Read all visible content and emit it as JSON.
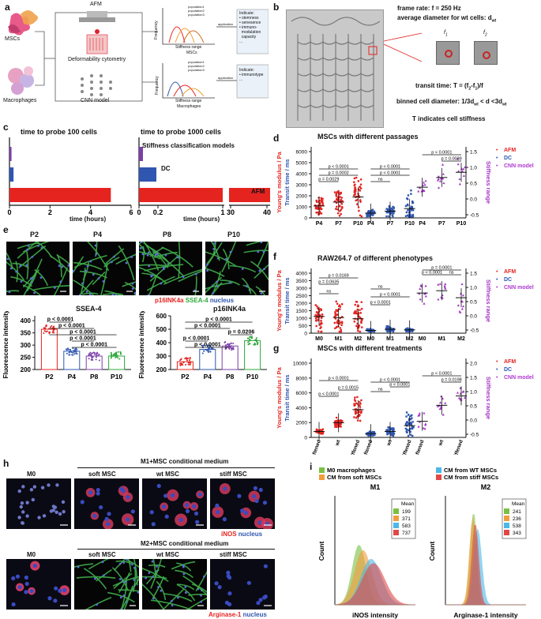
{
  "panels": {
    "a": {
      "label": "a",
      "left_nodes": [
        "MSCs",
        "Macrophages"
      ],
      "center_nodes": [
        "AFM",
        "Deformability cytometry",
        "CNN model"
      ],
      "hist_top": {
        "y_label": "Frequency",
        "x_label": "Stiffness range",
        "sub_label": "MSCs",
        "legend": [
          "population1",
          "population2",
          "population3"
        ]
      },
      "hist_bottom": {
        "y_label": "Frequency",
        "x_label": "Stiffness range",
        "sub_label": "Macrophages",
        "legend": [
          "population1",
          "population2",
          "population3"
        ]
      },
      "application_label": "application",
      "indicate_top": {
        "title": "Indicate:",
        "items": [
          "stemness",
          "senesence",
          "immuno-",
          "modulation",
          "capacity",
          "..."
        ]
      },
      "indicate_bottom": {
        "title": "Indicate:",
        "items": [
          "immunotype",
          "..."
        ]
      }
    },
    "b": {
      "label": "b",
      "frame_rate": "frame rate: f = 250 Hz",
      "avg_diameter": "average diameter for wt cells: d",
      "avg_diameter_sub": "wt",
      "f1": "f",
      "f1_sub": "1",
      "f2": "f",
      "f2_sub": "2",
      "transit": "transit time: T = (f",
      "transit_mid": "-f",
      "transit_end": ")/f",
      "binned": "binned cell diameter: 1/3d",
      "binned_mid": " < d <3d",
      "indicates": "T indicates cell stiffness"
    },
    "c": {
      "label": "c",
      "title_left": "time to probe 100 cells",
      "title_right": "time to probe 1000 cells",
      "rows": [
        "Stiffness classification models",
        "DC",
        "AFM"
      ],
      "x_label": "time (hours)",
      "ticks_left": [
        "0",
        "2",
        "4",
        "6"
      ],
      "ticks_right": [
        "0",
        "0.2",
        "1",
        "30",
        "40"
      ],
      "colors": {
        "cnn": "#7b3fa8",
        "dc": "#2f56b0",
        "afm": "#e52420"
      }
    },
    "d": {
      "label": "d",
      "title": "MSCs with different passages",
      "y_left": "Young's modulus / Pa",
      "y_left2": "Transit time / ms",
      "y_right": "Stiffness range",
      "groups": [
        "P4",
        "P7",
        "P10"
      ],
      "legend": [
        "AFM",
        "DC",
        "CNN model"
      ],
      "p": [
        "p = 0.0029",
        "p = 0.0002",
        "p < 0.0001",
        "ns",
        "p < 0.0001",
        "p < 0.0001",
        "p < 0.0001",
        "p = 0.0039"
      ],
      "y_ticks": [
        "0",
        "1000",
        "2000",
        "3000",
        "4000",
        "5000",
        "6000"
      ],
      "y2_ticks": [
        "-0.5",
        "0.0",
        "0.5",
        "1.0",
        "1.5"
      ]
    },
    "e": {
      "label": "e",
      "img_labels": [
        "P2",
        "P4",
        "P8",
        "P10"
      ],
      "stain_legend": [
        "p16INK4a",
        "SSEA-4",
        "nucleus"
      ],
      "ssea4": {
        "title": "SSEA-4",
        "y_label": "Fluorescence intensity",
        "groups": [
          "P2",
          "P4",
          "P8",
          "P10"
        ],
        "values": [
          365,
          275,
          255,
          255
        ],
        "ylim": [
          200,
          420
        ],
        "y_ticks": [
          "200",
          "250",
          "300",
          "350",
          "400"
        ],
        "p": [
          "p < 0.0001",
          "p < 0.0001",
          "p < 0.0001",
          "p < 0.0001",
          "p < 0.0001"
        ],
        "color": "#e52420"
      },
      "p16": {
        "title": "p16INK4a",
        "y_label": "Fluorescence intensity",
        "groups": [
          "P2",
          "P4",
          "P8",
          "P10"
        ],
        "values": [
          258,
          350,
          375,
          415
        ],
        "ylim": [
          200,
          600
        ],
        "y_ticks": [
          "200",
          "300",
          "400",
          "500",
          "600"
        ],
        "p": [
          "p < 0.0001",
          "p < 0.0001",
          "p = 0.0206",
          "p < 0.0001",
          "p < 0.0001"
        ],
        "colors": [
          "#e52420",
          "#2f56b0",
          "#7b3fa8",
          "#2ea83a"
        ]
      }
    },
    "f": {
      "label": "f",
      "title": "RAW264.7 of different phenotypes",
      "y_left": "Young's modulus / Pa",
      "y_left2": "Transit time / ms",
      "y_right": "Stiffness range",
      "groups": [
        "M0",
        "M1",
        "M2"
      ],
      "legend": [
        "AFM",
        "DC",
        "CNN model"
      ],
      "p": [
        "p = 0.0635",
        "p = 0.0169",
        "ns",
        "ns",
        "p < 0.0001",
        "p < 0.0001",
        "p < 0.0001",
        "ns",
        "p = 0.0001"
      ],
      "y_ticks": [
        "0",
        "500",
        "1000",
        "1500",
        "2000",
        "2500",
        "3000",
        "3500",
        "4000"
      ],
      "y2_ticks": [
        "-0.5",
        "0.0",
        "0.5",
        "1.0",
        "1.5"
      ]
    },
    "g": {
      "label": "g",
      "title": "MSCs with different treatments",
      "y_left": "Young's modulus / Pa",
      "y_left2": "Transit time / ms",
      "y_right": "Stiffness range",
      "groups": [
        "softened",
        "wt",
        "stiffened"
      ],
      "legend": [
        "AFM",
        "DC",
        "CNN model"
      ],
      "p": [
        "p < 0.0001",
        "p = 0.0015",
        "p < 0.0001",
        "ns",
        "p < 0.0001",
        "p < 0.0001",
        "p < 0.0001",
        "p = 0.0198"
      ],
      "y_ticks": [
        "0",
        "2000",
        "4000",
        "6000",
        "8000",
        "10000"
      ],
      "y2_ticks": [
        "-0.5",
        "0.0",
        "0.5",
        "1.0",
        "1.5",
        "2.0"
      ]
    },
    "h": {
      "label": "h",
      "header_top": "M1+MSC conditional medium",
      "header_bottom": "M2+MSC conditional medium",
      "cols_top": [
        "M0",
        "soft MSC",
        "wt MSC",
        "stiff MSC"
      ],
      "cols_bottom": [
        "M0",
        "soft MSC",
        "wt MSC",
        "stiff MSC"
      ],
      "stain_top": [
        "iNOS",
        "nucleus"
      ],
      "stain_bottom": [
        "Arginase-1",
        "nucleus"
      ]
    },
    "i": {
      "label": "i",
      "legend_left": [
        "M0 macrophages",
        "CM from soft MSCs"
      ],
      "legend_right": [
        "CM from WT MSCs",
        "CM from stiff MSCs"
      ],
      "m1": {
        "title": "M1",
        "x_label": "iNOS intensity",
        "y_label": "Count",
        "mean_title": "Mean",
        "means": [
          "199",
          "371",
          "583",
          "737"
        ]
      },
      "m2": {
        "title": "M2",
        "x_label": "Arginase-1 intensity",
        "y_label": "Count",
        "mean_title": "Mean",
        "means": [
          "241",
          "236",
          "538",
          "343"
        ]
      },
      "colors": [
        "#7ac143",
        "#f39c3c",
        "#4bb8e8",
        "#e04848"
      ]
    }
  }
}
